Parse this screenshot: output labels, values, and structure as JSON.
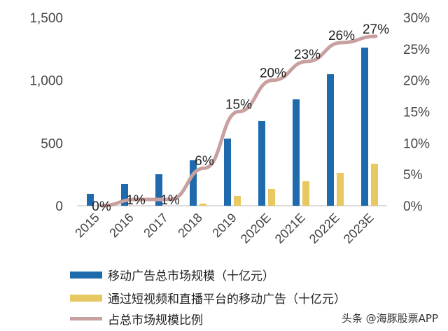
{
  "chart_data": {
    "type": "bar",
    "categories": [
      "2015",
      "2016",
      "2017",
      "2018",
      "2019",
      "2020E",
      "2021E",
      "2022E",
      "2023E"
    ],
    "series": [
      {
        "name": "移动广告总市场规模（十亿元）",
        "type": "bar",
        "axis": "left",
        "color": "#1F6AAD",
        "values": [
          95,
          173,
          251,
          362,
          535,
          675,
          848,
          1048,
          1260
        ]
      },
      {
        "name": "通过短视频和直播平台的移动广告（十亿元）",
        "type": "bar",
        "axis": "left",
        "color": "#E8C860",
        "values": [
          0,
          0,
          0,
          17,
          78,
          134,
          195,
          262,
          335
        ]
      },
      {
        "name": "占总市场规模比例",
        "type": "line",
        "axis": "right",
        "color": "#C9A0A0",
        "values": [
          0,
          1,
          1,
          6,
          15,
          20,
          23,
          26,
          27
        ],
        "labels": [
          "0%",
          "1%",
          "1%",
          "6%",
          "15%",
          "20%",
          "23%",
          "26%",
          "27%"
        ]
      }
    ],
    "ylim": [
      0,
      1500
    ],
    "yticks": [
      "0",
      "500",
      "1,000",
      "1,500"
    ],
    "y2lim": [
      0,
      30
    ],
    "y2ticks": [
      "0%",
      "5%",
      "10%",
      "15%",
      "20%",
      "25%",
      "30%"
    ],
    "grid": false,
    "legend": "bottom"
  },
  "watermark": "头条 @海豚股票APP"
}
